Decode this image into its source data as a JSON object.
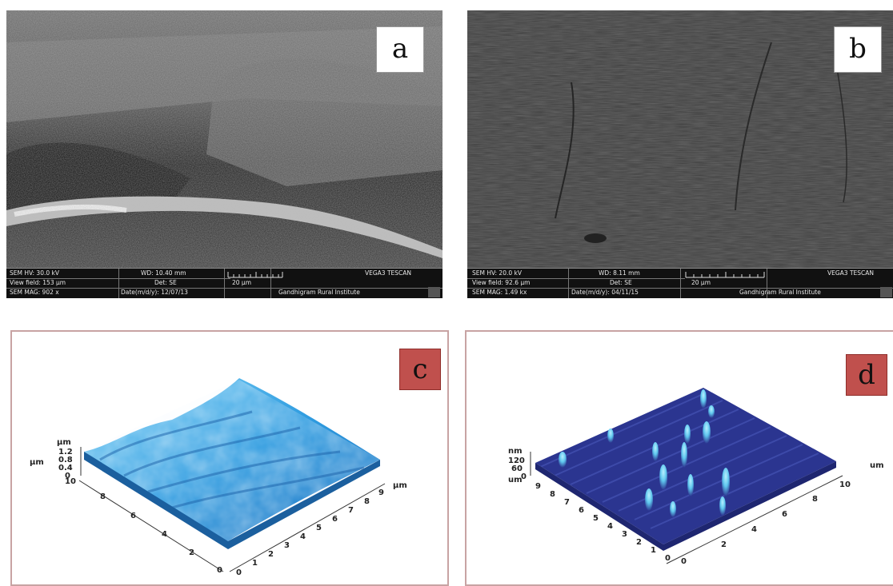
{
  "panels": {
    "a": {
      "label": "a",
      "info": {
        "hv": "SEM HV: 30.0 kV",
        "view_field": "View field: 153 µm",
        "mag": "SEM MAG: 902 x",
        "wd": "WD: 10.40 mm",
        "det": "Det: SE",
        "date": "Date(m/d/y): 12/07/13",
        "scale": "20 µm",
        "brand": "VEGA3 TESCAN",
        "institute": "Gandhigram Rural Institute"
      }
    },
    "b": {
      "label": "b",
      "info": {
        "hv": "SEM HV: 20.0 kV",
        "view_field": "View field: 92.6 µm",
        "mag": "SEM MAG: 1.49 kx",
        "wd": "WD: 8.11 mm",
        "det": "Det: SE",
        "date": "Date(m/d/y): 04/11/15",
        "scale": "20 µm",
        "brand": "VEGA3 TESCAN",
        "institute": "Gandhigram Rural Institute"
      }
    },
    "c": {
      "label": "c",
      "z_unit": "µm",
      "z_ticks": [
        "1.2",
        "0.8",
        "0.4",
        "0"
      ],
      "y_unit": "µm",
      "x_unit": "µm",
      "y_ticks": [
        "10",
        "8",
        "6",
        "4",
        "2",
        "0"
      ],
      "x_ticks": [
        "0",
        "1",
        "2",
        "3",
        "4",
        "5",
        "6",
        "7",
        "8",
        "9"
      ],
      "surface_color": "#3fa8e8"
    },
    "d": {
      "label": "d",
      "z_unit": "nm",
      "z_ticks": [
        "120",
        "60",
        "0"
      ],
      "y_unit": "um",
      "x_unit": "um",
      "left_ticks": [
        "9",
        "8",
        "7",
        "6",
        "5",
        "4",
        "3",
        "2",
        "1",
        "0"
      ],
      "right_ticks": [
        "10",
        "8",
        "6",
        "4",
        "2",
        "0"
      ],
      "surface_color": "#2b3590",
      "peak_color": "#5fc7ee"
    }
  }
}
